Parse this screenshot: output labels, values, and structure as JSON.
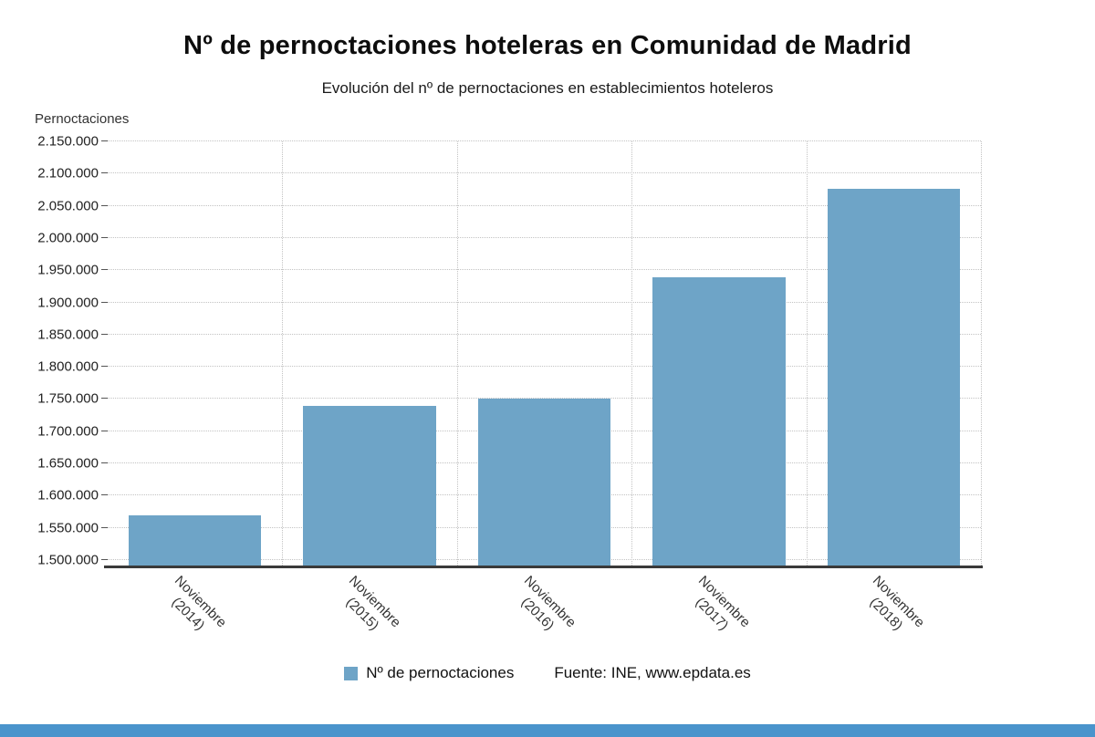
{
  "page": {
    "footer_bar_color": "#4a94cc"
  },
  "chart_data": {
    "type": "bar",
    "title": "Nº de pernoctaciones hoteleras en Comunidad de Madrid",
    "subtitle": "Evolución del nº de pernoctaciones en establecimientos hoteleros",
    "ylabel": "Pernoctaciones",
    "categories": [
      "Noviembre (2014)",
      "Noviembre (2015)",
      "Noviembre (2016)",
      "Noviembre (2017)",
      "Noviembre (2018)"
    ],
    "values": [
      1570000,
      1740000,
      1750000,
      1939000,
      2077000
    ],
    "ylim": [
      1500000,
      2150000
    ],
    "ytick_step": 50000,
    "ytick_labels": [
      "1.500.000",
      "1.550.000",
      "1.600.000",
      "1.650.000",
      "1.700.000",
      "1.750.000",
      "1.800.000",
      "1.850.000",
      "1.900.000",
      "1.950.000",
      "2.000.000",
      "2.050.000",
      "2.100.000",
      "2.150.000"
    ],
    "bar_color": "#6ea4c7",
    "grid": true,
    "legend_position": "bottom",
    "legend": [
      {
        "label": "Nº de pernoctaciones",
        "color": "#6ea4c7"
      }
    ],
    "source": "Fuente: INE, www.epdata.es"
  }
}
